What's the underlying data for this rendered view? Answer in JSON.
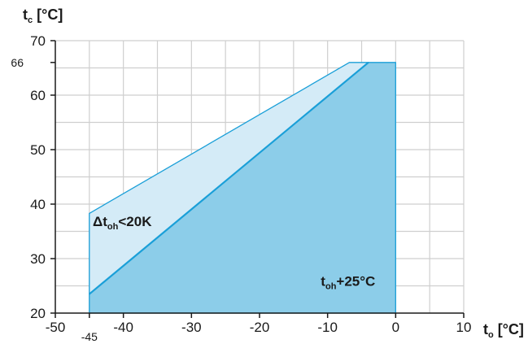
{
  "chart_data": {
    "type": "area",
    "xlim": [
      -50,
      10
    ],
    "ylim": [
      20,
      70
    ],
    "x_ticks": [
      -50,
      -40,
      -30,
      -20,
      -10,
      0,
      10
    ],
    "y_ticks": [
      20,
      30,
      40,
      50,
      60,
      70
    ],
    "extra_x_tick": {
      "value": -45,
      "label": "-45"
    },
    "extra_y_tick": {
      "value": 66,
      "label": "66"
    },
    "x_label_main": "t",
    "x_label_sub": "o",
    "x_label_unit": " [°C]",
    "y_label_main": "t",
    "y_label_sub": "c",
    "y_label_unit": " [°C]",
    "grid": true,
    "series": [
      {
        "region": [
          [
            -45,
            20
          ],
          [
            -45,
            23.5
          ],
          [
            -4,
            66
          ],
          [
            0,
            66
          ],
          [
            0,
            20
          ]
        ],
        "annotation": {
          "main": "t",
          "sub": "oh",
          "rest": "+25°C",
          "at": [
            -11,
            25
          ]
        }
      },
      {
        "region": [
          [
            -45,
            23.5
          ],
          [
            -45,
            38.3
          ],
          [
            -6.8,
            66
          ],
          [
            -4,
            66
          ]
        ],
        "annotation": {
          "main": "Δt",
          "sub": "oh",
          "rest": "<20K",
          "at": [
            -44.5,
            36
          ]
        }
      }
    ],
    "colors": {
      "dark_fill": "#8ccde9",
      "light_fill": "#d4ebf7",
      "outline": "#1a9fd8",
      "grid": "#cfcfcf",
      "axis": "#1a1a1a"
    }
  }
}
